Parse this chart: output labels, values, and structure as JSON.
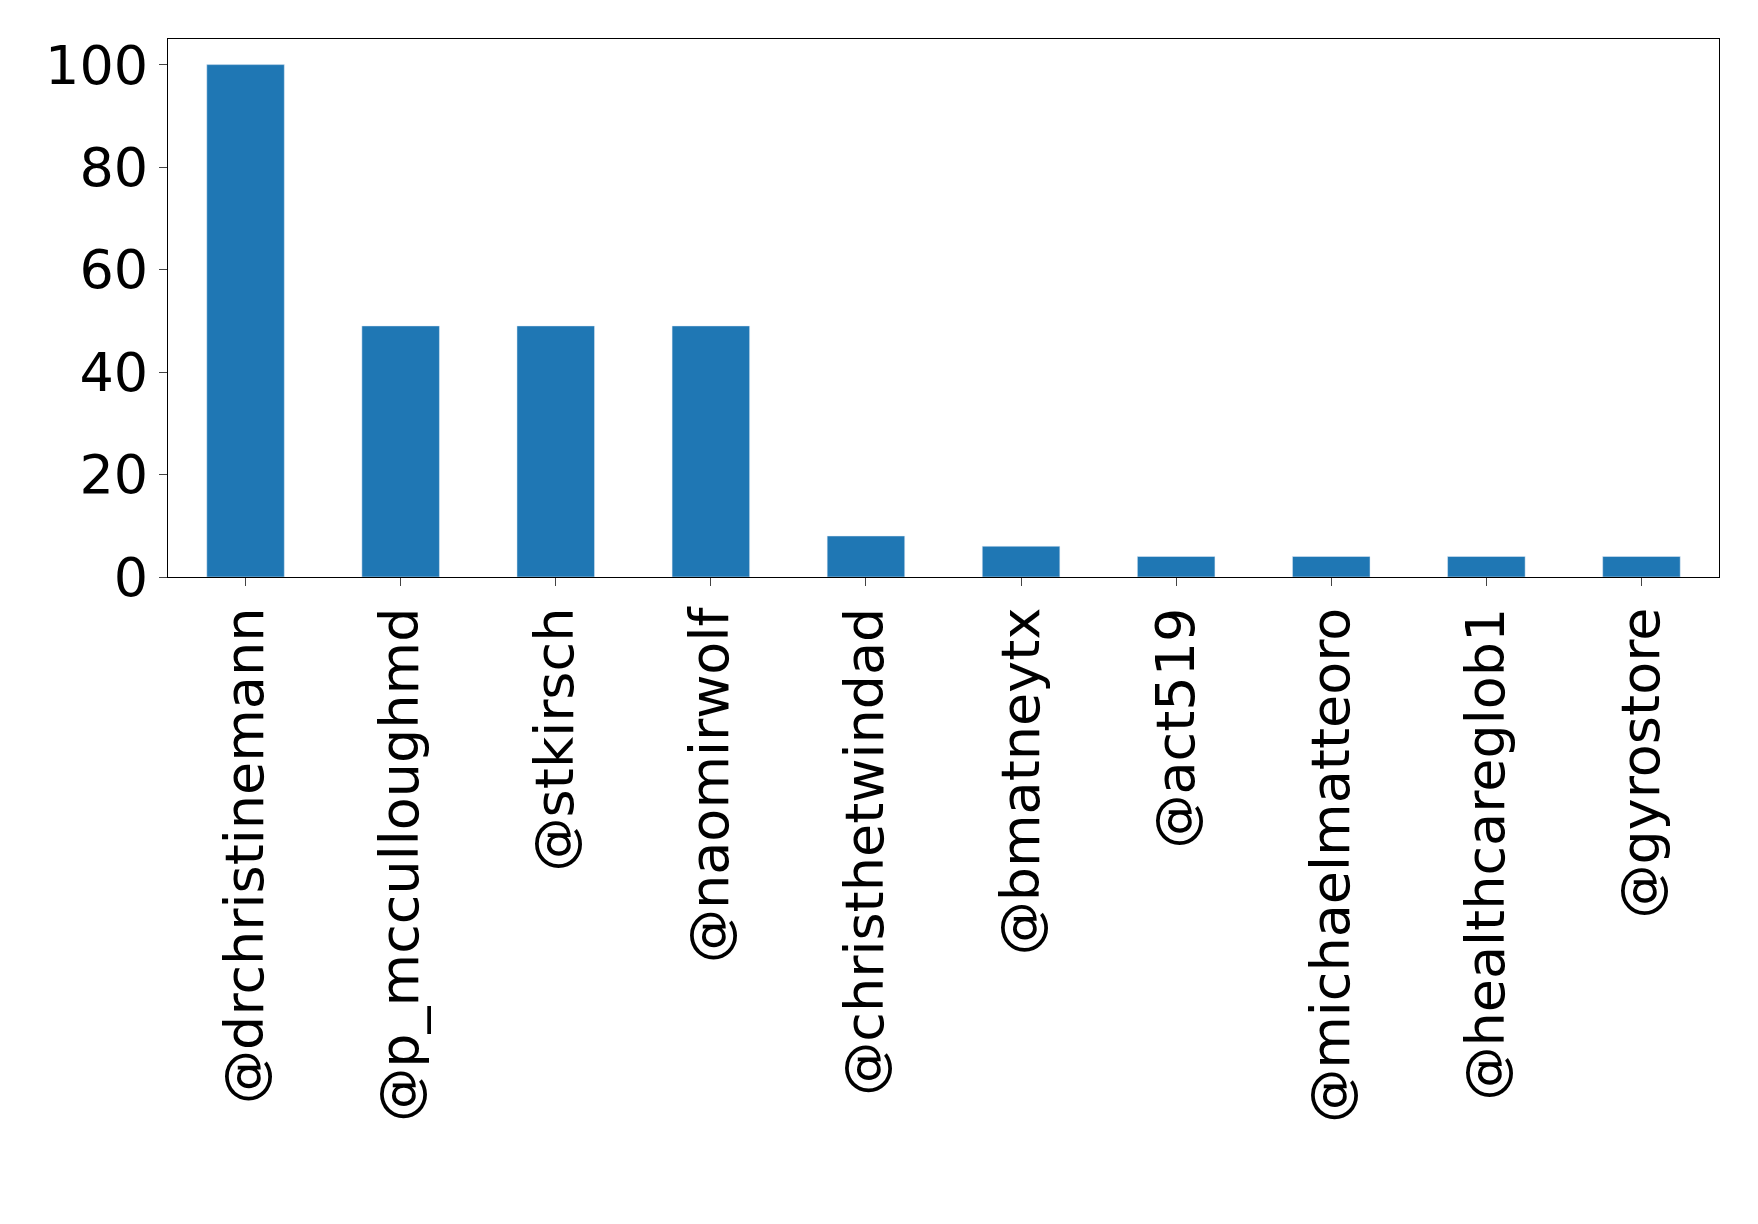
{
  "chart_data": {
    "type": "bar",
    "categories": [
      "@drchristinemann",
      "@p_mcculloughmd",
      "@stkirsch",
      "@naomirwolf",
      "@christhetwindad",
      "@bmatneytx",
      "@act519",
      "@michaelmatteoro",
      "@healthcareglob1",
      "@gyrostore"
    ],
    "values": [
      100,
      49,
      49,
      49,
      8,
      6,
      4,
      4,
      4,
      4
    ],
    "color": "#1f77b4",
    "ylim": [
      0,
      105
    ],
    "yticks": [
      0,
      20,
      40,
      60,
      80,
      100
    ]
  }
}
